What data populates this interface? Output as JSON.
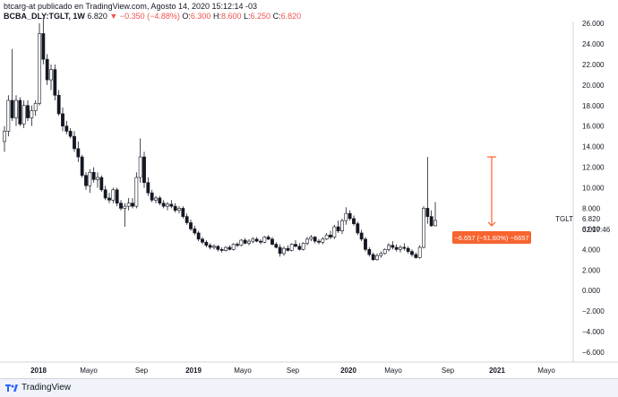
{
  "header": {
    "line1": "btcarg-at publicado en TradingView.com, Agosto 14, 2020 15:12:14 -03",
    "symbol": "BCBA_DLY:TGLT, 1W",
    "last": "6.820",
    "change": "▼ −0.350 (−4.88%)",
    "o_label": "O:",
    "o_val": "6.300",
    "h_label": "H:",
    "h_val": "8.600",
    "l_label": "L:",
    "l_val": "6.250",
    "c_label": "C:",
    "c_val": "6.820"
  },
  "footer": {
    "brand": "TradingView"
  },
  "colors": {
    "up": "#ffffff",
    "down": "#131722",
    "wick": "#131722",
    "measure": "#f7642f",
    "price_tag": "#131722"
  },
  "chart_data": {
    "type": "candlestick",
    "title": "",
    "xlabel": "",
    "ylabel": "",
    "x_ticks": [
      "2018",
      "Mayo",
      "Sep",
      "2019",
      "Mayo",
      "Sep",
      "2020",
      "Mayo",
      "Sep",
      "2021",
      "Mayo"
    ],
    "y_ticks": [
      "26.000",
      "24.000",
      "22.000",
      "20.000",
      "18.000",
      "16.000",
      "14.000",
      "12.000",
      "10.000",
      "8.000",
      "6.000",
      "4.000",
      "2.000",
      "0.000",
      "−2.000",
      "−4.000",
      "−6.000"
    ],
    "ylim": [
      -6.5,
      26.5
    ],
    "grid": false,
    "symbol_label": "TGLT",
    "last_value": "6.820",
    "countdown": "02:17:46",
    "measure_label": "−6.657 (−51.60%) −6657",
    "measure_from": 13.0,
    "measure_to": 6.3,
    "candles": [
      {
        "o": 14.5,
        "h": 16.0,
        "l": 13.5,
        "c": 15.5
      },
      {
        "o": 15.5,
        "h": 19.0,
        "l": 15.0,
        "c": 18.5
      },
      {
        "o": 18.5,
        "h": 23.5,
        "l": 16.5,
        "c": 16.8
      },
      {
        "o": 16.8,
        "h": 19.0,
        "l": 16.0,
        "c": 18.5
      },
      {
        "o": 18.5,
        "h": 18.8,
        "l": 16.0,
        "c": 16.2
      },
      {
        "o": 16.2,
        "h": 18.5,
        "l": 15.8,
        "c": 18.0
      },
      {
        "o": 18.0,
        "h": 18.5,
        "l": 16.5,
        "c": 16.8
      },
      {
        "o": 16.8,
        "h": 18.0,
        "l": 16.0,
        "c": 17.5
      },
      {
        "o": 17.5,
        "h": 18.5,
        "l": 17.0,
        "c": 18.2
      },
      {
        "o": 18.2,
        "h": 26.0,
        "l": 18.0,
        "c": 25.0
      },
      {
        "o": 25.0,
        "h": 26.5,
        "l": 22.0,
        "c": 22.5
      },
      {
        "o": 22.5,
        "h": 23.0,
        "l": 20.0,
        "c": 20.5
      },
      {
        "o": 20.5,
        "h": 22.0,
        "l": 19.5,
        "c": 21.5
      },
      {
        "o": 21.5,
        "h": 22.0,
        "l": 18.5,
        "c": 19.0
      },
      {
        "o": 19.0,
        "h": 19.5,
        "l": 17.0,
        "c": 17.2
      },
      {
        "o": 17.2,
        "h": 17.8,
        "l": 15.5,
        "c": 16.0
      },
      {
        "o": 16.0,
        "h": 16.5,
        "l": 15.2,
        "c": 15.5
      },
      {
        "o": 15.5,
        "h": 15.8,
        "l": 14.8,
        "c": 15.0
      },
      {
        "o": 15.0,
        "h": 15.5,
        "l": 13.5,
        "c": 13.8
      },
      {
        "o": 13.8,
        "h": 14.5,
        "l": 12.5,
        "c": 13.0
      },
      {
        "o": 13.0,
        "h": 13.2,
        "l": 11.0,
        "c": 11.2
      },
      {
        "o": 11.2,
        "h": 11.5,
        "l": 9.8,
        "c": 10.2
      },
      {
        "o": 10.2,
        "h": 11.8,
        "l": 9.5,
        "c": 11.5
      },
      {
        "o": 11.5,
        "h": 12.0,
        "l": 10.5,
        "c": 10.8
      },
      {
        "o": 10.8,
        "h": 11.5,
        "l": 10.0,
        "c": 11.0
      },
      {
        "o": 11.0,
        "h": 11.2,
        "l": 9.6,
        "c": 9.8
      },
      {
        "o": 9.8,
        "h": 10.2,
        "l": 8.8,
        "c": 9.0
      },
      {
        "o": 9.0,
        "h": 9.5,
        "l": 8.5,
        "c": 8.8
      },
      {
        "o": 8.8,
        "h": 10.0,
        "l": 8.5,
        "c": 9.8
      },
      {
        "o": 9.8,
        "h": 10.0,
        "l": 8.2,
        "c": 8.5
      },
      {
        "o": 8.5,
        "h": 8.8,
        "l": 7.8,
        "c": 8.0
      },
      {
        "o": 8.0,
        "h": 8.5,
        "l": 6.2,
        "c": 8.2
      },
      {
        "o": 8.2,
        "h": 9.0,
        "l": 7.8,
        "c": 8.5
      },
      {
        "o": 8.5,
        "h": 9.0,
        "l": 8.0,
        "c": 8.2
      },
      {
        "o": 8.2,
        "h": 11.5,
        "l": 8.0,
        "c": 11.0
      },
      {
        "o": 11.0,
        "h": 14.8,
        "l": 10.5,
        "c": 13.0
      },
      {
        "o": 13.0,
        "h": 13.5,
        "l": 10.0,
        "c": 10.5
      },
      {
        "o": 10.5,
        "h": 11.0,
        "l": 9.2,
        "c": 9.5
      },
      {
        "o": 9.5,
        "h": 9.8,
        "l": 8.6,
        "c": 8.8
      },
      {
        "o": 8.8,
        "h": 9.2,
        "l": 8.5,
        "c": 9.0
      },
      {
        "o": 9.0,
        "h": 9.2,
        "l": 8.3,
        "c": 8.5
      },
      {
        "o": 8.5,
        "h": 8.8,
        "l": 8.0,
        "c": 8.2
      },
      {
        "o": 8.2,
        "h": 8.6,
        "l": 7.8,
        "c": 8.4
      },
      {
        "o": 8.4,
        "h": 8.8,
        "l": 8.0,
        "c": 8.2
      },
      {
        "o": 8.2,
        "h": 8.5,
        "l": 7.6,
        "c": 7.8
      },
      {
        "o": 7.8,
        "h": 8.2,
        "l": 7.5,
        "c": 8.0
      },
      {
        "o": 8.0,
        "h": 8.2,
        "l": 7.0,
        "c": 7.2
      },
      {
        "o": 7.2,
        "h": 7.5,
        "l": 6.4,
        "c": 6.6
      },
      {
        "o": 6.6,
        "h": 6.9,
        "l": 5.8,
        "c": 6.0
      },
      {
        "o": 6.0,
        "h": 6.3,
        "l": 5.4,
        "c": 5.6
      },
      {
        "o": 5.6,
        "h": 5.8,
        "l": 4.8,
        "c": 5.0
      },
      {
        "o": 5.0,
        "h": 5.2,
        "l": 4.5,
        "c": 4.7
      },
      {
        "o": 4.7,
        "h": 4.9,
        "l": 4.2,
        "c": 4.4
      },
      {
        "o": 4.4,
        "h": 4.6,
        "l": 4.0,
        "c": 4.2
      },
      {
        "o": 4.2,
        "h": 4.5,
        "l": 4.0,
        "c": 4.3
      },
      {
        "o": 4.3,
        "h": 4.4,
        "l": 3.8,
        "c": 4.0
      },
      {
        "o": 4.0,
        "h": 4.2,
        "l": 3.7,
        "c": 3.9
      },
      {
        "o": 3.9,
        "h": 4.3,
        "l": 3.8,
        "c": 4.2
      },
      {
        "o": 4.2,
        "h": 4.4,
        "l": 3.9,
        "c": 4.0
      },
      {
        "o": 4.0,
        "h": 4.6,
        "l": 3.9,
        "c": 4.5
      },
      {
        "o": 4.5,
        "h": 4.7,
        "l": 4.2,
        "c": 4.4
      },
      {
        "o": 4.4,
        "h": 5.0,
        "l": 4.3,
        "c": 4.9
      },
      {
        "o": 4.9,
        "h": 5.1,
        "l": 4.5,
        "c": 4.6
      },
      {
        "o": 4.6,
        "h": 5.0,
        "l": 4.4,
        "c": 4.8
      },
      {
        "o": 4.8,
        "h": 5.2,
        "l": 4.6,
        "c": 5.0
      },
      {
        "o": 5.0,
        "h": 5.2,
        "l": 4.7,
        "c": 4.8
      },
      {
        "o": 4.8,
        "h": 5.0,
        "l": 4.5,
        "c": 4.7
      },
      {
        "o": 4.7,
        "h": 5.3,
        "l": 4.6,
        "c": 5.2
      },
      {
        "o": 5.2,
        "h": 5.4,
        "l": 4.9,
        "c": 5.0
      },
      {
        "o": 5.0,
        "h": 5.2,
        "l": 4.4,
        "c": 4.5
      },
      {
        "o": 4.5,
        "h": 4.7,
        "l": 4.1,
        "c": 4.2
      },
      {
        "o": 4.2,
        "h": 4.5,
        "l": 3.3,
        "c": 3.6
      },
      {
        "o": 3.6,
        "h": 4.3,
        "l": 3.4,
        "c": 4.1
      },
      {
        "o": 4.1,
        "h": 4.4,
        "l": 3.8,
        "c": 3.9
      },
      {
        "o": 3.9,
        "h": 4.6,
        "l": 3.8,
        "c": 4.5
      },
      {
        "o": 4.5,
        "h": 4.9,
        "l": 4.2,
        "c": 4.3
      },
      {
        "o": 4.3,
        "h": 4.6,
        "l": 3.9,
        "c": 4.0
      },
      {
        "o": 4.0,
        "h": 4.7,
        "l": 3.9,
        "c": 4.6
      },
      {
        "o": 4.6,
        "h": 5.2,
        "l": 4.4,
        "c": 5.0
      },
      {
        "o": 5.0,
        "h": 5.4,
        "l": 4.8,
        "c": 5.2
      },
      {
        "o": 5.2,
        "h": 5.3,
        "l": 4.6,
        "c": 4.8
      },
      {
        "o": 4.8,
        "h": 5.0,
        "l": 4.5,
        "c": 4.7
      },
      {
        "o": 4.7,
        "h": 5.2,
        "l": 4.5,
        "c": 5.0
      },
      {
        "o": 5.0,
        "h": 5.6,
        "l": 4.9,
        "c": 5.4
      },
      {
        "o": 5.4,
        "h": 5.8,
        "l": 5.0,
        "c": 5.2
      },
      {
        "o": 5.2,
        "h": 6.4,
        "l": 5.0,
        "c": 6.2
      },
      {
        "o": 6.2,
        "h": 6.8,
        "l": 5.6,
        "c": 5.8
      },
      {
        "o": 5.8,
        "h": 7.0,
        "l": 5.5,
        "c": 6.8
      },
      {
        "o": 6.8,
        "h": 8.1,
        "l": 6.4,
        "c": 7.5
      },
      {
        "o": 7.5,
        "h": 7.8,
        "l": 6.8,
        "c": 7.0
      },
      {
        "o": 7.0,
        "h": 7.3,
        "l": 6.3,
        "c": 6.5
      },
      {
        "o": 6.5,
        "h": 6.7,
        "l": 5.4,
        "c": 5.6
      },
      {
        "o": 5.6,
        "h": 5.9,
        "l": 4.8,
        "c": 5.0
      },
      {
        "o": 5.0,
        "h": 5.2,
        "l": 3.8,
        "c": 4.0
      },
      {
        "o": 4.0,
        "h": 4.2,
        "l": 3.3,
        "c": 3.5
      },
      {
        "o": 3.5,
        "h": 3.7,
        "l": 2.9,
        "c": 3.0
      },
      {
        "o": 3.0,
        "h": 3.6,
        "l": 2.9,
        "c": 3.4
      },
      {
        "o": 3.4,
        "h": 3.8,
        "l": 3.2,
        "c": 3.6
      },
      {
        "o": 3.6,
        "h": 4.1,
        "l": 3.5,
        "c": 4.0
      },
      {
        "o": 4.0,
        "h": 4.6,
        "l": 3.8,
        "c": 4.4
      },
      {
        "o": 4.4,
        "h": 4.8,
        "l": 4.0,
        "c": 4.2
      },
      {
        "o": 4.2,
        "h": 4.5,
        "l": 3.8,
        "c": 4.0
      },
      {
        "o": 4.0,
        "h": 4.4,
        "l": 3.7,
        "c": 4.2
      },
      {
        "o": 4.2,
        "h": 4.6,
        "l": 3.9,
        "c": 4.1
      },
      {
        "o": 4.1,
        "h": 4.3,
        "l": 3.6,
        "c": 3.8
      },
      {
        "o": 3.8,
        "h": 4.0,
        "l": 3.3,
        "c": 3.5
      },
      {
        "o": 3.5,
        "h": 3.7,
        "l": 3.1,
        "c": 3.2
      },
      {
        "o": 3.2,
        "h": 4.4,
        "l": 3.1,
        "c": 4.2
      },
      {
        "o": 4.2,
        "h": 8.2,
        "l": 4.1,
        "c": 8.0
      },
      {
        "o": 8.0,
        "h": 13.0,
        "l": 6.5,
        "c": 7.2
      },
      {
        "o": 7.2,
        "h": 7.8,
        "l": 6.2,
        "c": 6.3
      },
      {
        "o": 6.3,
        "h": 8.6,
        "l": 6.25,
        "c": 6.82
      }
    ]
  }
}
